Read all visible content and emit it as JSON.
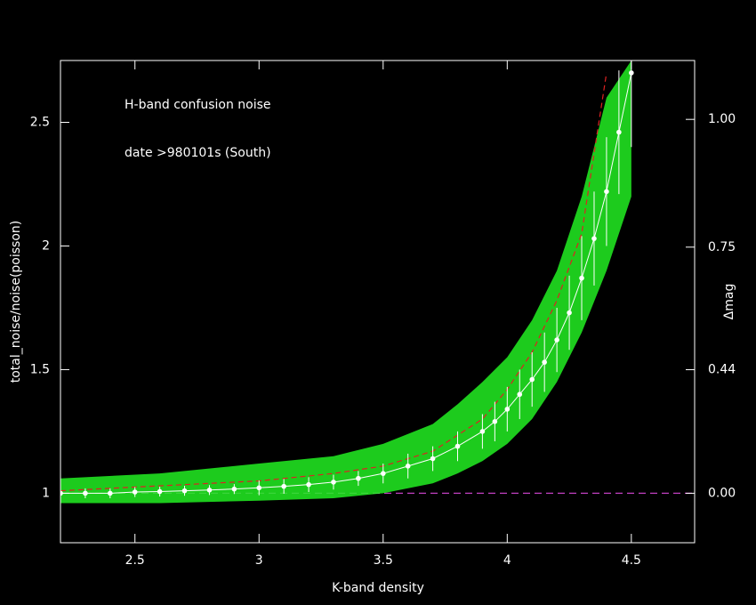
{
  "chart_data": {
    "type": "scatter",
    "annotations": [
      "H-band confusion noise",
      "date >980101s (South)"
    ],
    "x_label": "K-band density",
    "y_label": "total_noise/noise(poisson)",
    "y2_label": "Δmag",
    "xlim": [
      2.2,
      4.755
    ],
    "ylim": [
      0.8,
      2.75
    ],
    "xticks": [
      2.5,
      3,
      3.5,
      4,
      4.5
    ],
    "yticks": [
      1,
      1.5,
      2,
      2.5
    ],
    "y2_scale": "magnitude",
    "y2ticks": [
      {
        "value": 0,
        "label": "0.00"
      },
      {
        "value": 0.44,
        "label": "0.44"
      },
      {
        "value": 0.75,
        "label": "0.75"
      },
      {
        "value": 1,
        "label": "1.00"
      }
    ],
    "reference_line": {
      "y": 1,
      "color": "#c040c0"
    },
    "band": {
      "color": "#22ee22",
      "x": [
        2.2,
        2.6,
        3.0,
        3.3,
        3.5,
        3.7,
        3.8,
        3.9,
        4.0,
        4.1,
        4.2,
        4.3,
        4.4,
        4.5
      ],
      "lower": [
        0.96,
        0.96,
        0.97,
        0.98,
        1.0,
        1.04,
        1.08,
        1.13,
        1.2,
        1.3,
        1.45,
        1.65,
        1.9,
        2.2
      ],
      "upper": [
        1.06,
        1.08,
        1.12,
        1.15,
        1.2,
        1.28,
        1.36,
        1.45,
        1.55,
        1.7,
        1.9,
        2.2,
        2.6,
        2.75
      ]
    },
    "fit": {
      "color": "#dd2222",
      "x": [
        2.2,
        2.6,
        3.0,
        3.3,
        3.5,
        3.7,
        3.9,
        4.0,
        4.1,
        4.2,
        4.3,
        4.4
      ],
      "values": [
        1.01,
        1.03,
        1.05,
        1.08,
        1.11,
        1.17,
        1.3,
        1.42,
        1.57,
        1.78,
        2.05,
        2.7
      ]
    },
    "series": [
      {
        "color": "#ffffff",
        "x": [
          2.2,
          2.3,
          2.4,
          2.5,
          2.6,
          2.7,
          2.8,
          2.9,
          3.0,
          3.1,
          3.2,
          3.3,
          3.4,
          3.5,
          3.6,
          3.7,
          3.8,
          3.9,
          3.95,
          4.0,
          4.05,
          4.1,
          4.15,
          4.2,
          4.25,
          4.3,
          4.35,
          4.4,
          4.45,
          4.5
        ],
        "values": [
          1.0,
          1.0,
          1.0,
          1.005,
          1.007,
          1.01,
          1.013,
          1.017,
          1.022,
          1.028,
          1.035,
          1.045,
          1.06,
          1.08,
          1.11,
          1.14,
          1.19,
          1.25,
          1.29,
          1.34,
          1.4,
          1.46,
          1.53,
          1.62,
          1.73,
          1.87,
          2.03,
          2.22,
          2.46,
          2.7
        ],
        "errors": [
          0.02,
          0.02,
          0.02,
          0.02,
          0.02,
          0.02,
          0.02,
          0.02,
          0.03,
          0.03,
          0.03,
          0.03,
          0.03,
          0.04,
          0.05,
          0.05,
          0.06,
          0.07,
          0.08,
          0.09,
          0.1,
          0.11,
          0.12,
          0.13,
          0.15,
          0.17,
          0.19,
          0.22,
          0.25,
          0.3
        ]
      }
    ]
  }
}
